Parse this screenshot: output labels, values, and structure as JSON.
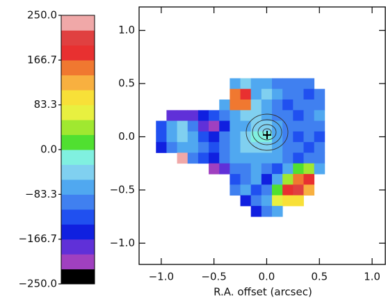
{
  "chart_data": {
    "type": "heatmap",
    "xlabel": "R.A. offset (arcsec)",
    "x": [
      -1.0,
      -0.9,
      -0.8,
      -0.7,
      -0.6,
      -0.5,
      -0.4,
      -0.3,
      -0.2,
      -0.1,
      0.0,
      0.1,
      0.2,
      0.3,
      0.4,
      0.5
    ],
    "y": [
      0.5,
      0.4,
      0.3,
      0.2,
      0.1,
      0.0,
      -0.1,
      -0.2,
      -0.3,
      -0.4,
      -0.5,
      -0.6,
      -0.7
    ],
    "values": [
      [
        null,
        null,
        null,
        null,
        null,
        null,
        null,
        -60,
        -40,
        -80,
        -60,
        -90,
        -100,
        -100,
        -110,
        null
      ],
      [
        null,
        null,
        null,
        null,
        null,
        null,
        null,
        160,
        180,
        -60,
        -50,
        -80,
        -100,
        -90,
        -120,
        -100
      ],
      [
        null,
        null,
        null,
        null,
        null,
        null,
        -80,
        140,
        150,
        -40,
        -70,
        -90,
        -120,
        -100,
        -110,
        -90
      ],
      [
        null,
        -190,
        -180,
        -170,
        -150,
        -130,
        -100,
        -60,
        -40,
        -50,
        -80,
        -100,
        -90,
        -120,
        -100,
        -80
      ],
      [
        -120,
        -80,
        -50,
        -100,
        -170,
        -200,
        -150,
        -80,
        -60,
        -40,
        -30,
        -60,
        -100,
        -110,
        -90,
        -100
      ],
      [
        -130,
        -60,
        -30,
        -80,
        -120,
        -140,
        -100,
        -70,
        -40,
        -20,
        -20,
        -60,
        -90,
        -120,
        -110,
        -130
      ],
      [
        -150,
        -100,
        -60,
        -80,
        -110,
        -120,
        -90,
        -60,
        -50,
        -30,
        -40,
        -70,
        -100,
        -100,
        -120,
        -110
      ],
      [
        null,
        null,
        240,
        -100,
        -120,
        -150,
        -90,
        -80,
        -60,
        -70,
        -60,
        -80,
        -110,
        -130,
        -100,
        -90
      ],
      [
        null,
        null,
        null,
        null,
        null,
        -200,
        -180,
        -110,
        -90,
        -60,
        -100,
        -120,
        -70,
        10,
        40,
        -80
      ],
      [
        null,
        null,
        null,
        null,
        null,
        null,
        null,
        -120,
        -100,
        -80,
        -140,
        -60,
        50,
        150,
        180,
        null
      ],
      [
        null,
        null,
        null,
        null,
        null,
        null,
        null,
        -90,
        -60,
        -130,
        -110,
        20,
        170,
        200,
        120,
        null
      ],
      [
        null,
        null,
        null,
        null,
        null,
        null,
        null,
        null,
        -150,
        -100,
        -70,
        60,
        110,
        90,
        null,
        null
      ],
      [
        null,
        null,
        null,
        null,
        null,
        null,
        null,
        null,
        null,
        -140,
        -110,
        -60,
        null,
        null,
        null,
        null
      ]
    ],
    "xlim": [
      -1.21,
      1.125
    ],
    "ylim": [
      -1.2,
      1.22
    ],
    "xticks": [
      {
        "value": -1.0,
        "label": "−1.0"
      },
      {
        "value": -0.5,
        "label": "−0.5"
      },
      {
        "value": 0,
        "label": "0.0"
      },
      0.5,
      {
        "value": 1.0,
        "label": "1.0"
      }
    ],
    "yticks": [
      {
        "value": 1.0,
        "label": "1.0"
      },
      0.5,
      {
        "value": 0,
        "label": "0.0"
      },
      {
        "value": -0.5,
        "label": "−0.5"
      },
      {
        "value": -1.0,
        "label": "−1.0"
      }
    ],
    "colorbar": {
      "lim": [
        -250,
        250
      ],
      "ticks": [
        {
          "value": 250,
          "label": "250.0"
        },
        166.7,
        83.3,
        {
          "value": 0,
          "label": "0.0"
        },
        {
          "value": -83.3,
          "label": "−83.3"
        },
        {
          "value": -166.7,
          "label": "−166.7"
        },
        {
          "value": -250,
          "label": "−250.0"
        }
      ],
      "colors": [
        "#000000",
        "#a040c0",
        "#6030d8",
        "#1020e0",
        "#2050f0",
        "#4080f0",
        "#50a8f0",
        "#80d0f0",
        "#80f0e0",
        "#50e030",
        "#a0e830",
        "#e8f040",
        "#f8e038",
        "#f8b040",
        "#f07830",
        "#e83030",
        "#e04040",
        "#f0a8a8"
      ]
    }
  }
}
